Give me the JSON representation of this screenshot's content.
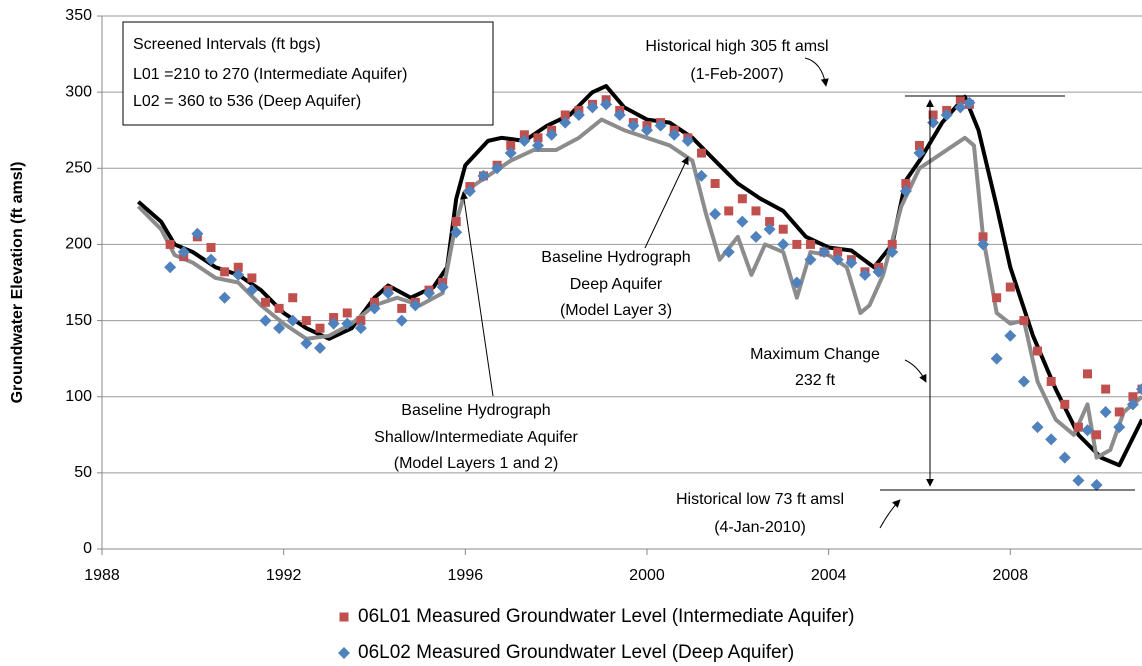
{
  "chart_data": {
    "type": "line",
    "y_label": "Groundwater Elevation (ft amsl)",
    "xlim": [
      1988,
      2010.9
    ],
    "xticks": [
      1988,
      1992,
      1996,
      2000,
      2004,
      2008
    ],
    "ylim": [
      0,
      350
    ],
    "yticks": [
      0,
      50,
      100,
      150,
      200,
      250,
      300,
      350
    ],
    "grid": true,
    "legend": "bottom",
    "series": [
      {
        "name": "06L01 Measured Groundwater Level (Intermediate Aquifer)",
        "color": "#c0504d",
        "marker": "square",
        "x": [
          1989.5,
          1989.8,
          1990.1,
          1990.4,
          1990.7,
          1991.0,
          1991.3,
          1991.6,
          1991.9,
          1992.2,
          1992.5,
          1992.8,
          1993.1,
          1993.4,
          1993.7,
          1994.0,
          1994.3,
          1994.6,
          1994.9,
          1995.2,
          1995.5,
          1995.8,
          1996.1,
          1996.4,
          1996.7,
          1997.0,
          1997.3,
          1997.6,
          1997.9,
          1998.2,
          1998.5,
          1998.8,
          1999.1,
          1999.4,
          1999.7,
          2000.0,
          2000.3,
          2000.6,
          2000.9,
          2001.2,
          2001.5,
          2001.8,
          2002.1,
          2002.4,
          2002.7,
          2003.0,
          2003.3,
          2003.6,
          2003.9,
          2004.2,
          2004.5,
          2004.8,
          2005.1,
          2005.4,
          2005.7,
          2006.0,
          2006.3,
          2006.6,
          2006.9,
          2007.1,
          2007.4,
          2007.7,
          2008.0,
          2008.3,
          2008.6,
          2008.9,
          2009.2,
          2009.5,
          2009.7,
          2009.9,
          2010.1,
          2010.4,
          2010.7,
          2010.9
        ],
        "values": [
          200,
          192,
          205,
          198,
          182,
          185,
          178,
          162,
          158,
          165,
          150,
          145,
          152,
          155,
          150,
          162,
          170,
          158,
          162,
          170,
          175,
          215,
          238,
          245,
          252,
          265,
          272,
          270,
          275,
          285,
          288,
          292,
          295,
          288,
          280,
          278,
          280,
          275,
          270,
          260,
          240,
          222,
          230,
          222,
          215,
          210,
          200,
          200,
          195,
          195,
          190,
          182,
          185,
          200,
          240,
          265,
          285,
          288,
          295,
          292,
          205,
          165,
          172,
          150,
          130,
          110,
          95,
          80,
          115,
          75,
          105,
          90,
          100,
          105
        ]
      },
      {
        "name": "06L02 Measured Groundwater Level (Deep Aquifer)",
        "color": "#4f81bd",
        "marker": "diamond",
        "x": [
          1989.5,
          1989.8,
          1990.1,
          1990.4,
          1990.7,
          1991.0,
          1991.3,
          1991.6,
          1991.9,
          1992.2,
          1992.5,
          1992.8,
          1993.1,
          1993.4,
          1993.7,
          1994.0,
          1994.3,
          1994.6,
          1994.9,
          1995.2,
          1995.5,
          1995.8,
          1996.1,
          1996.4,
          1996.7,
          1997.0,
          1997.3,
          1997.6,
          1997.9,
          1998.2,
          1998.5,
          1998.8,
          1999.1,
          1999.4,
          1999.7,
          2000.0,
          2000.3,
          2000.6,
          2000.9,
          2001.2,
          2001.5,
          2001.8,
          2002.1,
          2002.4,
          2002.7,
          2003.0,
          2003.3,
          2003.6,
          2003.9,
          2004.2,
          2004.5,
          2004.8,
          2005.1,
          2005.4,
          2005.7,
          2006.0,
          2006.3,
          2006.6,
          2006.9,
          2007.1,
          2007.4,
          2007.7,
          2008.0,
          2008.3,
          2008.6,
          2008.9,
          2009.2,
          2009.5,
          2009.7,
          2009.9,
          2010.1,
          2010.4,
          2010.7,
          2010.9
        ],
        "values": [
          185,
          195,
          207,
          190,
          165,
          180,
          170,
          150,
          145,
          150,
          135,
          132,
          148,
          148,
          145,
          158,
          168,
          150,
          160,
          168,
          172,
          208,
          235,
          245,
          250,
          260,
          268,
          265,
          272,
          280,
          285,
          290,
          292,
          285,
          278,
          275,
          278,
          272,
          268,
          245,
          220,
          195,
          215,
          205,
          210,
          200,
          175,
          190,
          195,
          190,
          188,
          180,
          182,
          195,
          235,
          260,
          280,
          285,
          290,
          293,
          200,
          125,
          140,
          110,
          80,
          72,
          60,
          45,
          78,
          42,
          90,
          80,
          95,
          105
        ]
      },
      {
        "color": "#000000",
        "x": [
          1988.8,
          1989.3,
          1989.6,
          1990,
          1990.5,
          1991,
          1991.5,
          1992,
          1992.5,
          1993,
          1993.5,
          1994,
          1994.3,
          1994.8,
          1995.3,
          1995.6,
          1995.8,
          1996,
          1996.5,
          1996.8,
          1997.3,
          1997.8,
          1998.3,
          1998.8,
          1999.1,
          1999.5,
          2000,
          2000.5,
          2001,
          2001.5,
          2002,
          2002.5,
          2003,
          2003.5,
          2004,
          2004.5,
          2005,
          2005.4,
          2005.7,
          2006,
          2006.5,
          2007,
          2007.3,
          2007.7,
          2008,
          2008.5,
          2009,
          2009.5,
          2010,
          2010.4,
          2010.9
        ],
        "values": [
          228,
          215,
          200,
          195,
          185,
          180,
          170,
          155,
          145,
          138,
          145,
          165,
          173,
          165,
          172,
          185,
          230,
          252,
          268,
          270,
          268,
          278,
          285,
          300,
          304,
          290,
          282,
          280,
          270,
          255,
          240,
          230,
          222,
          205,
          198,
          196,
          185,
          200,
          242,
          255,
          280,
          297,
          275,
          225,
          185,
          140,
          105,
          75,
          60,
          55,
          85
        ]
      },
      {
        "color": "#8c8c8c",
        "x": [
          1988.8,
          1989.3,
          1989.6,
          1990,
          1990.5,
          1991,
          1991.5,
          1992,
          1992.5,
          1993,
          1993.5,
          1994,
          1994.5,
          1995,
          1995.5,
          1995.8,
          1996,
          1996.5,
          1997,
          1997.5,
          1998,
          1998.5,
          1999,
          1999.5,
          2000,
          2000.5,
          2001,
          2001.3,
          2001.6,
          2002,
          2002.3,
          2002.6,
          2003,
          2003.3,
          2003.6,
          2004,
          2004.4,
          2004.7,
          2004.9,
          2005.2,
          2005.6,
          2006,
          2006.5,
          2007,
          2007.2,
          2007.4,
          2007.7,
          2008,
          2008.3,
          2008.6,
          2009,
          2009.4,
          2009.7,
          2009.9,
          2010.2,
          2010.5,
          2010.9
        ],
        "values": [
          225,
          210,
          193,
          188,
          178,
          175,
          160,
          148,
          138,
          140,
          148,
          160,
          165,
          160,
          168,
          215,
          235,
          245,
          255,
          262,
          262,
          270,
          282,
          275,
          270,
          265,
          255,
          220,
          190,
          205,
          180,
          200,
          195,
          165,
          195,
          193,
          185,
          155,
          160,
          180,
          225,
          250,
          260,
          270,
          265,
          205,
          155,
          148,
          150,
          110,
          85,
          75,
          95,
          60,
          65,
          90,
          100
        ]
      }
    ],
    "annotations": [
      [
        "Screened Intervals  (ft bgs)",
        "L01 =210 to 270 (Intermediate Aquifer)",
        "L02 = 360 to 536 (Deep Aquifer)"
      ],
      [
        "Historical high 305 ft amsl",
        "(1-Feb-2007)"
      ],
      [
        "Baseline Hydrograph",
        "Deep Aquifer",
        "(Model Layer 3)"
      ],
      [
        "Maximum Change",
        "232 ft"
      ],
      [
        "Baseline Hydrograph",
        "Shallow/Intermediate Aquifer",
        "(Model Layers 1 and 2)"
      ],
      [
        "Historical low 73 ft amsl",
        "(4-Jan-2010)"
      ]
    ]
  }
}
